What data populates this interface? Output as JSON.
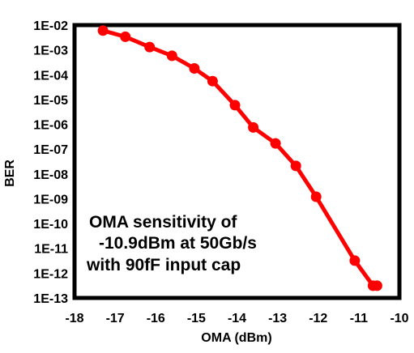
{
  "chart_data": {
    "type": "line",
    "xlabel": "OMA (dBm)",
    "ylabel": "BER",
    "xlim": [
      -18,
      -10
    ],
    "ylim": [
      1e-13,
      0.01
    ],
    "yscale": "log",
    "grid": false,
    "x_ticks": [
      "-18",
      "-17",
      "-16",
      "-15",
      "-14",
      "-13",
      "-12",
      "-11",
      "-10"
    ],
    "y_ticks": [
      "1E-02",
      "1E-03",
      "1E-04",
      "1E-05",
      "1E-06",
      "1E-07",
      "1E-08",
      "1E-09",
      "1E-10",
      "1E-11",
      "1E-12",
      "1E-13"
    ],
    "series": [
      {
        "color": "#ff0000",
        "x": [
          -17.3,
          -16.75,
          -16.15,
          -15.6,
          -15.05,
          -14.6,
          -14.05,
          -13.6,
          -13.05,
          -12.55,
          -12.05,
          -11.1,
          -10.65,
          -10.55
        ],
        "y": [
          0.006,
          0.0034,
          0.0013,
          0.00058,
          0.00018,
          5.5e-05,
          5.9e-06,
          7.5e-07,
          1.7e-07,
          2.1e-08,
          1.2e-09,
          3.2e-12,
          3.1e-13,
          3.1e-13
        ]
      }
    ],
    "annotation": [
      "OMA sensitivity of",
      "-10.9dBm at 50Gb/s",
      "with 90fF input cap"
    ]
  }
}
